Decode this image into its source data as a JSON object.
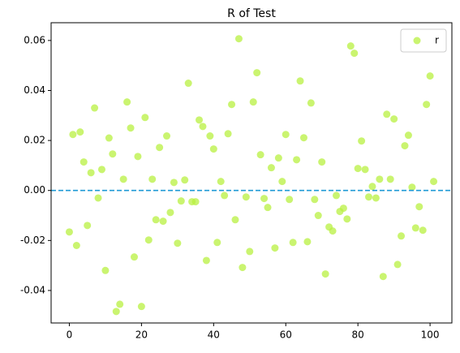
{
  "chart_data": {
    "type": "scatter",
    "title": "R of Test",
    "x": [
      0,
      1,
      2,
      3,
      4,
      5,
      6,
      7,
      8,
      9,
      10,
      11,
      12,
      13,
      14,
      15,
      16,
      17,
      18,
      19,
      20,
      21,
      22,
      23,
      24,
      25,
      26,
      27,
      28,
      29,
      30,
      31,
      32,
      33,
      34,
      35,
      36,
      37,
      38,
      39,
      40,
      41,
      42,
      43,
      44,
      45,
      46,
      47,
      48,
      49,
      50,
      51,
      52,
      53,
      54,
      55,
      56,
      57,
      58,
      59,
      60,
      61,
      62,
      63,
      64,
      65,
      66,
      67,
      68,
      69,
      70,
      71,
      72,
      73,
      74,
      75,
      76,
      77,
      78,
      79,
      80,
      81,
      82,
      83,
      84,
      85,
      86,
      87,
      88,
      89,
      90,
      91,
      92,
      93,
      94,
      95,
      96,
      97,
      98,
      99,
      100,
      101
    ],
    "series": [
      {
        "name": "r",
        "color": "#b8f040",
        "values": [
          -0.0166,
          0.0224,
          -0.022,
          0.0234,
          0.0114,
          -0.014,
          0.0071,
          0.033,
          -0.003,
          0.0084,
          -0.032,
          0.021,
          0.0146,
          -0.0484,
          -0.0455,
          0.0045,
          0.0354,
          0.025,
          -0.0266,
          0.0136,
          -0.0464,
          0.0292,
          -0.0198,
          0.0045,
          -0.0117,
          0.0172,
          -0.0123,
          0.0218,
          -0.0088,
          0.0032,
          -0.0211,
          -0.0042,
          0.0042,
          0.0429,
          -0.0045,
          -0.0045,
          0.0282,
          0.0256,
          -0.028,
          0.0218,
          0.0166,
          -0.0208,
          0.0036,
          -0.002,
          0.0227,
          0.0344,
          -0.0117,
          0.0607,
          -0.0308,
          -0.0026,
          -0.0244,
          0.0354,
          0.0471,
          0.0143,
          -0.0032,
          -0.0068,
          0.0091,
          -0.023,
          0.013,
          0.0036,
          0.0224,
          -0.0036,
          -0.0208,
          0.0123,
          0.0438,
          0.0211,
          -0.0205,
          0.035,
          -0.0036,
          -0.01,
          0.0114,
          -0.0334,
          -0.0146,
          -0.0162,
          -0.002,
          -0.0084,
          -0.0071,
          -0.0114,
          0.0578,
          0.0549,
          0.0088,
          0.0198,
          0.0084,
          -0.0026,
          0.0016,
          -0.003,
          0.0045,
          -0.0344,
          0.0305,
          0.0045,
          0.0286,
          -0.0296,
          -0.0182,
          0.0179,
          0.0221,
          0.0013,
          -0.015,
          -0.0065,
          -0.0159,
          0.0344,
          0.0458,
          0.0036
        ]
      }
    ],
    "reference_line": {
      "value": 0,
      "color": "#1f9ad6",
      "style": "dashed"
    },
    "xlim": [
      -5.05,
      106.05
    ],
    "xticks": [
      0,
      20,
      40,
      60,
      80,
      100
    ],
    "ylim": [
      -0.053,
      0.0671
    ],
    "yticks": [
      -0.04,
      -0.02,
      {
        "value": 0,
        "label": "0.00"
      },
      0.02,
      0.04,
      0.06
    ],
    "legend": "upper right",
    "grid": false
  }
}
